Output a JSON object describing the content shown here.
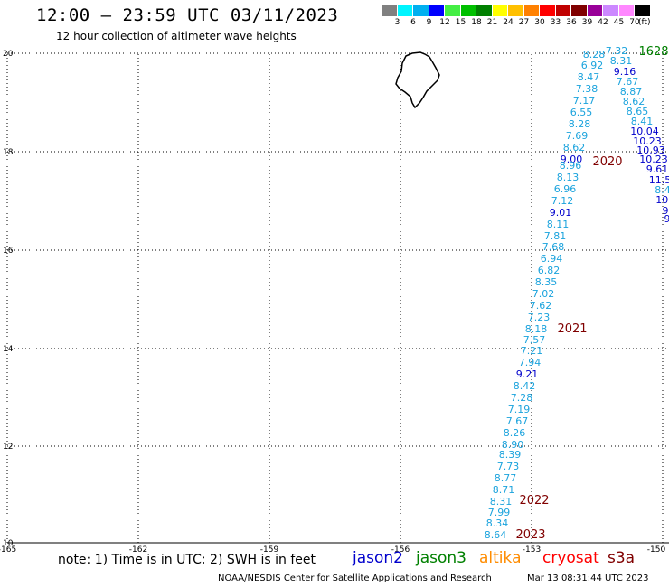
{
  "header": {
    "title": "12:00 – 23:59 UTC 03/11/2023",
    "subtitle": "12 hour collection of altimeter wave heights"
  },
  "legend": {
    "unit": "(ft)",
    "colors": [
      "#808080",
      "#00f5ff",
      "#00b0f0",
      "#0000ff",
      "#44ee44",
      "#00c000",
      "#008000",
      "#ffff00",
      "#ffc000",
      "#ff8000",
      "#ff0000",
      "#c00000",
      "#800000",
      "#990099",
      "#cc88ff",
      "#ff88ff",
      "#000000"
    ],
    "labels": [
      "3",
      "6",
      "9",
      "12",
      "15",
      "18",
      "21",
      "24",
      "27",
      "30",
      "33",
      "36",
      "39",
      "42",
      "45",
      "70"
    ]
  },
  "axes": {
    "x_ticks": [
      "-165",
      "-162",
      "-159",
      "-156",
      "-153",
      "-150"
    ],
    "y_ticks": [
      "20",
      "18",
      "16",
      "14",
      "12",
      "10"
    ]
  },
  "tracks": [
    {
      "color": "#1ba3dd",
      "values": [
        "8.28",
        "6.92",
        "8.47",
        "7.38",
        "7.17",
        "6.55",
        "8.28",
        "7.69",
        "8.62",
        "9.00",
        "8.96",
        "8.13",
        "6.96",
        "7.12",
        "9.01",
        "8.11",
        "7.81",
        "7.68",
        "6.94",
        "6.82",
        "8.35",
        "7.02",
        "7.62",
        "7.23",
        "8.18",
        "7.57",
        "7.21",
        "7.94",
        "9.21",
        "8.42",
        "7.28",
        "7.19",
        "7.67",
        "8.26",
        "8.90",
        "8.39",
        "7.73",
        "8.77",
        "8.71",
        "8.31",
        "7.99",
        "8.34",
        "8.64"
      ]
    },
    {
      "color": "#1ba3dd",
      "values": [
        "7.32",
        "8.31",
        "9.16",
        "7.67",
        "8.87",
        "8.62",
        "8.65",
        "8.41",
        "10.04",
        "10.23",
        "10.93",
        "10.23",
        "9.61",
        "11.5",
        "8.4",
        "10.",
        "9",
        "9"
      ]
    }
  ],
  "pass_labels": [
    {
      "text": "1628",
      "color": "#008000"
    },
    {
      "text": "2020",
      "color": "#800000"
    },
    {
      "text": "2021",
      "color": "#800000"
    },
    {
      "text": "2022",
      "color": "#800000"
    },
    {
      "text": "2023",
      "color": "#800000"
    }
  ],
  "footer": {
    "note": "note: 1) Time is in UTC; 2) SWH is in feet",
    "satellites": [
      {
        "name": "jason2",
        "color": "#0000cc"
      },
      {
        "name": "jason3",
        "color": "#008000"
      },
      {
        "name": "altika",
        "color": "#ff8c00"
      },
      {
        "name": "cryosat",
        "color": "#ff0000"
      },
      {
        "name": "s3a",
        "color": "#800000"
      }
    ],
    "credit": "NOAA/NESDIS Center for Satellite Applications and Research",
    "timestamp": "Mar 13 08:31:44 UTC 2023"
  }
}
